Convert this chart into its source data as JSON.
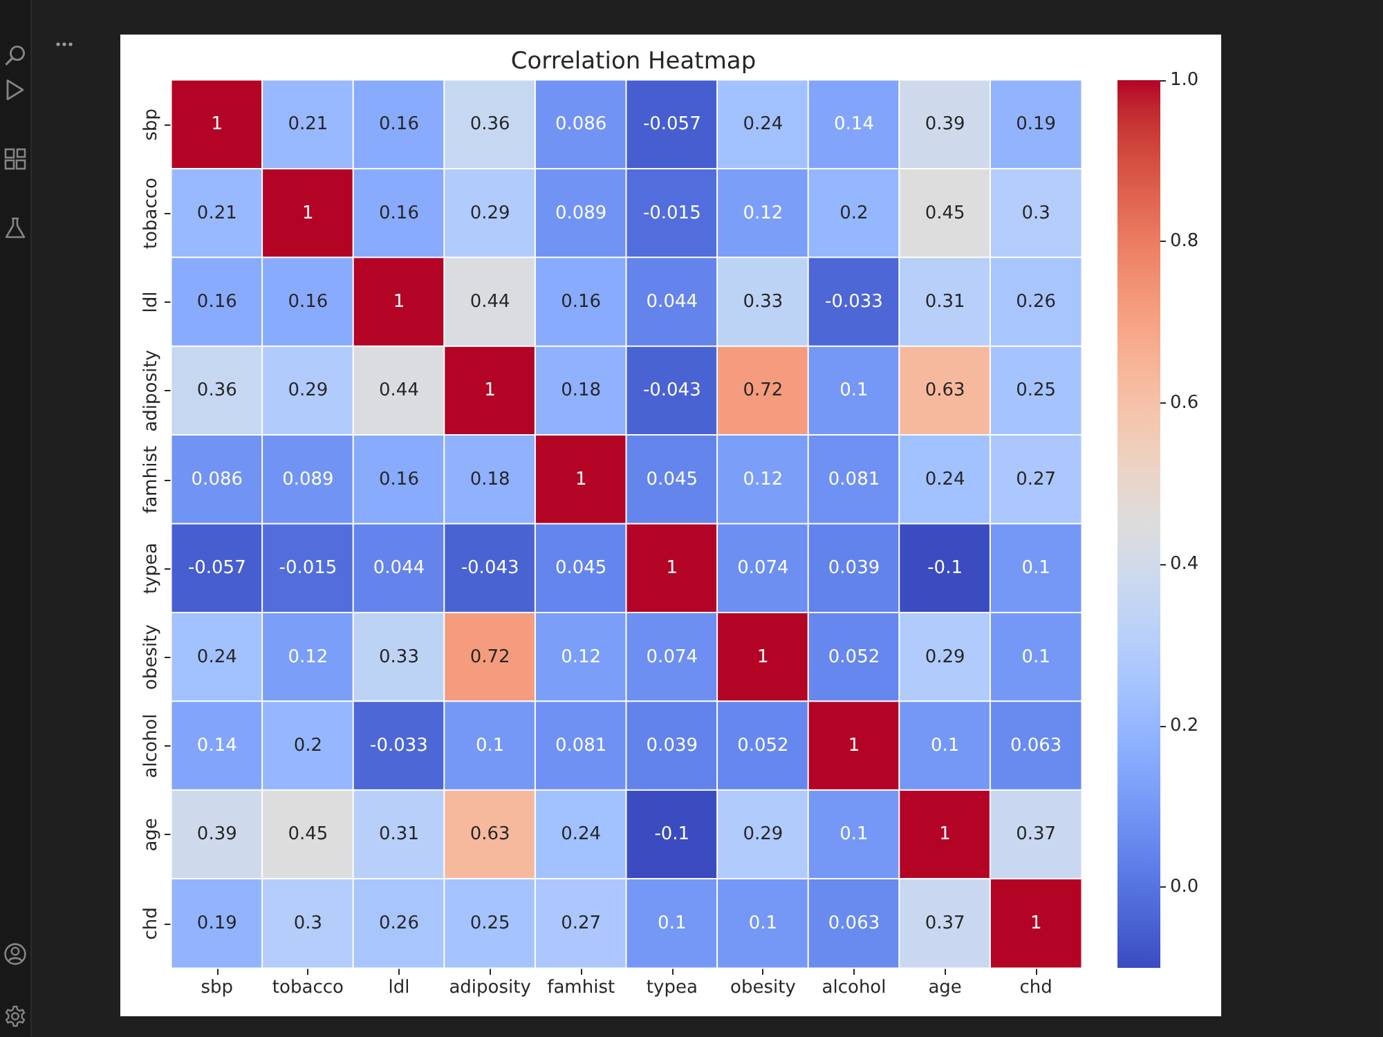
{
  "chart_data": {
    "type": "heatmap",
    "title": "Correlation Heatmap",
    "categories": [
      "sbp",
      "tobacco",
      "ldl",
      "adiposity",
      "famhist",
      "typea",
      "obesity",
      "alcohol",
      "age",
      "chd"
    ],
    "y_categories": [
      "sbp",
      "tobacco",
      "ldl",
      "adiposity",
      "famhist",
      "typea",
      "obesity",
      "alcohol",
      "age",
      "chd"
    ],
    "cells": [
      [
        1,
        0.21,
        0.16,
        0.36,
        0.086,
        -0.057,
        0.24,
        0.14,
        0.39,
        0.19
      ],
      [
        0.21,
        1,
        0.16,
        0.29,
        0.089,
        -0.015,
        0.12,
        0.2,
        0.45,
        0.3
      ],
      [
        0.16,
        0.16,
        1,
        0.44,
        0.16,
        0.044,
        0.33,
        -0.033,
        0.31,
        0.26
      ],
      [
        0.36,
        0.29,
        0.44,
        1,
        0.18,
        -0.043,
        0.72,
        0.1,
        0.63,
        0.25
      ],
      [
        0.086,
        0.089,
        0.16,
        0.18,
        1,
        0.045,
        0.12,
        0.081,
        0.24,
        0.27
      ],
      [
        -0.057,
        -0.015,
        0.044,
        -0.043,
        0.045,
        1,
        0.074,
        0.039,
        -0.1,
        0.1
      ],
      [
        0.24,
        0.12,
        0.33,
        0.72,
        0.12,
        0.074,
        1,
        0.052,
        0.29,
        0.1
      ],
      [
        0.14,
        0.2,
        -0.033,
        0.1,
        0.081,
        0.039,
        0.052,
        1,
        0.1,
        0.063
      ],
      [
        0.39,
        0.45,
        0.31,
        0.63,
        0.24,
        -0.1,
        0.29,
        0.1,
        1,
        0.37
      ],
      [
        0.19,
        0.3,
        0.26,
        0.25,
        0.27,
        0.1,
        0.1,
        0.063,
        0.37,
        1
      ]
    ],
    "clim": [
      -0.1,
      1
    ],
    "cticks": [
      {
        "value": 0,
        "label": "0.0"
      },
      0.2,
      0.4,
      0.6,
      0.8,
      {
        "value": 1,
        "label": "1.0"
      }
    ],
    "data_labels": true
  }
}
